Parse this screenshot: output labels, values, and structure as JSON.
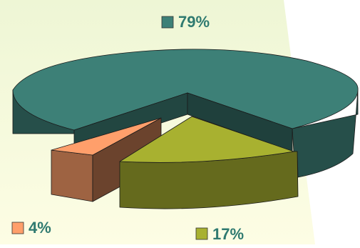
{
  "chart_data": {
    "type": "pie",
    "style": "3d-exploded",
    "title": "",
    "slices": [
      {
        "label": "79%",
        "value": 79,
        "color": "#3d8077"
      },
      {
        "label": "4%",
        "value": 4,
        "color": "#ff9f6b"
      },
      {
        "label": "17%",
        "value": 17,
        "color": "#a8b130"
      }
    ],
    "legend_placement": "around-chart"
  },
  "colors": {
    "background_gradient": [
      "#eef6d6",
      "#fbfbe3"
    ],
    "label_text": "#2f7a70"
  }
}
